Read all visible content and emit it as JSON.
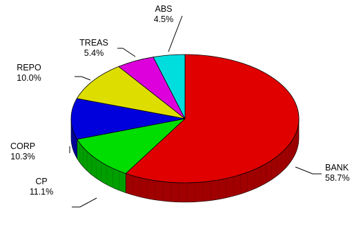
{
  "chart_data": {
    "type": "pie",
    "style": "3d",
    "categories": [
      "BANK",
      "CP",
      "CORP",
      "REPO",
      "TREAS",
      "ABS"
    ],
    "values": [
      58.7,
      11.1,
      10.3,
      10.0,
      5.4,
      4.5
    ],
    "value_labels": [
      "58.7%",
      "11.1%",
      "10.3%",
      "10.0%",
      "5.4%",
      "4.5%"
    ],
    "colors": [
      "#e00000",
      "#00dd00",
      "#0000dd",
      "#dddd00",
      "#dd00dd",
      "#00dddd"
    ],
    "legend": "none",
    "labels_outside_with_leaders": true
  }
}
